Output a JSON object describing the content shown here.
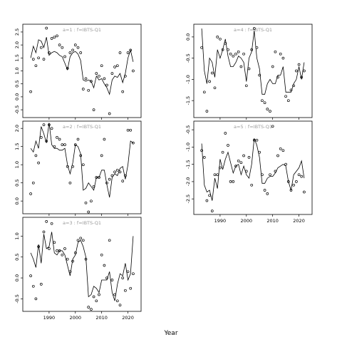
{
  "chart_data": {
    "type": "scatter",
    "xlabel": "Year",
    "x_ticks": [
      1990,
      2000,
      2010,
      2020
    ],
    "x_range": [
      1980,
      2025
    ],
    "panels": [
      {
        "id": "p1",
        "title": "a=1 : f=IBTS-Q1",
        "position": "left-1",
        "ylim": [
          -0.8,
          2.8
        ],
        "yticks": [
          "-0.5",
          "0.0",
          "0.5",
          "1.0",
          "1.5",
          "2.0",
          "2.5"
        ],
        "show_x_ticklabels": false,
        "obs_x": [
          1983,
          1984,
          1985,
          1986,
          1987,
          1988,
          1989,
          1990,
          1991,
          1992,
          1993,
          1994,
          1995,
          1996,
          1997,
          1998,
          1999,
          2000,
          2001,
          2002,
          2003,
          2004,
          2005,
          2006,
          2007,
          2008,
          2009,
          2010,
          2011,
          2012,
          2013,
          2014,
          2015,
          2016,
          2017,
          2018,
          2019,
          2020,
          2021,
          2022
        ],
        "obs_y": [
          0.2,
          1.45,
          1.2,
          1.5,
          1.9,
          1.45,
          2.65,
          1.7,
          2.25,
          2.3,
          2.35,
          2.0,
          1.9,
          1.55,
          1.1,
          1.7,
          1.8,
          2.0,
          1.9,
          1.7,
          0.3,
          0.7,
          0.25,
          0.6,
          -0.5,
          0.9,
          0.8,
          1.2,
          0.7,
          0.45,
          -0.65,
          0.9,
          1.15,
          1.2,
          1.7,
          0.2,
          0.8,
          1.7,
          1.8,
          1.0
        ],
        "fit_x": [
          1983,
          1984,
          1985,
          1986,
          1987,
          1988,
          1989,
          1990,
          1991,
          1992,
          1993,
          1994,
          1995,
          1996,
          1997,
          1998,
          1999,
          2000,
          2001,
          2002,
          2003,
          2004,
          2005,
          2006,
          2007,
          2008,
          2009,
          2010,
          2011,
          2012,
          2013,
          2014,
          2015,
          2016,
          2017,
          2018,
          2019,
          2020,
          2021,
          2022
        ],
        "fit_y": [
          1.5,
          1.95,
          1.7,
          2.2,
          2.15,
          1.9,
          2.3,
          1.6,
          1.7,
          1.75,
          1.7,
          1.6,
          1.55,
          1.3,
          1.05,
          1.55,
          1.7,
          1.75,
          1.65,
          1.4,
          0.65,
          0.6,
          0.65,
          0.6,
          0.35,
          0.8,
          0.65,
          0.7,
          0.5,
          0.35,
          0.1,
          0.65,
          0.8,
          0.75,
          0.9,
          0.55,
          0.9,
          1.5,
          1.8,
          1.35
        ]
      },
      {
        "id": "p2",
        "title": "a=2 : f=IBTS-Q1",
        "position": "left-2",
        "ylim": [
          -0.35,
          2.2
        ],
        "yticks": [
          "0.0",
          "0.5",
          "1.0",
          "1.5",
          "2.0"
        ],
        "show_x_ticklabels": false,
        "obs_x": [
          1983,
          1984,
          1985,
          1986,
          1987,
          1988,
          1989,
          1990,
          1991,
          1992,
          1993,
          1994,
          1995,
          1996,
          1997,
          1998,
          1999,
          2000,
          2001,
          2002,
          2003,
          2004,
          2005,
          2006,
          2007,
          2008,
          2009,
          2010,
          2011,
          2012,
          2013,
          2014,
          2015,
          2016,
          2017,
          2018,
          2019,
          2020,
          2021,
          2022
        ],
        "obs_y": [
          0.2,
          0.5,
          1.25,
          1.05,
          1.75,
          2.1,
          1.65,
          2.1,
          2.0,
          1.5,
          1.75,
          1.7,
          1.55,
          1.55,
          0.95,
          0.5,
          0.95,
          1.55,
          1.7,
          1.25,
          1.0,
          -0.05,
          -0.3,
          0.0,
          0.4,
          0.65,
          0.65,
          1.25,
          1.7,
          0.5,
          0.6,
          0.7,
          0.8,
          0.85,
          0.8,
          0.55,
          0.7,
          1.95,
          1.95,
          1.6
        ],
        "fit_y": [
          1.45,
          1.35,
          1.65,
          1.45,
          2.05,
          1.85,
          1.6,
          2.15,
          1.55,
          1.45,
          1.45,
          1.4,
          1.4,
          1.45,
          1.0,
          0.75,
          1.05,
          1.55,
          1.5,
          1.3,
          0.3,
          0.35,
          0.5,
          0.4,
          0.3,
          0.65,
          0.65,
          0.85,
          0.85,
          0.45,
          0.1,
          0.65,
          0.75,
          0.7,
          0.9,
          0.95,
          0.6,
          1.0,
          1.65,
          1.6
        ]
      },
      {
        "id": "p3",
        "title": "a=3 : f=IBTS-Q1",
        "position": "left-3",
        "ylim": [
          -0.8,
          1.45
        ],
        "yticks": [
          "-0.5",
          "0.0",
          "0.5",
          "1.0"
        ],
        "show_x_ticklabels": true,
        "obs_x": [
          1983,
          1984,
          1985,
          1986,
          1987,
          1988,
          1989,
          1990,
          1991,
          1992,
          1993,
          1994,
          1995,
          1996,
          1997,
          1998,
          1999,
          2000,
          2001,
          2002,
          2003,
          2004,
          2005,
          2006,
          2007,
          2008,
          2009,
          2010,
          2011,
          2012,
          2013,
          2014,
          2015,
          2016,
          2017,
          2018,
          2019,
          2020,
          2021,
          2022
        ],
        "obs_y": [
          0.05,
          -0.2,
          -0.5,
          0.75,
          -0.15,
          1.1,
          1.35,
          0.7,
          1.3,
          0.85,
          0.65,
          0.65,
          0.55,
          0.7,
          0.45,
          0.15,
          0.4,
          0.6,
          0.9,
          0.95,
          0.9,
          0.45,
          -0.7,
          -0.75,
          -0.45,
          -0.55,
          -0.4,
          0.55,
          0.3,
          0.0,
          0.9,
          -0.05,
          -0.4,
          -0.55,
          -0.65,
          0.0,
          -0.3,
          0.15,
          -0.25,
          0.1
        ],
        "fit_y": [
          0.6,
          0.45,
          0.25,
          0.8,
          0.35,
          1.05,
          0.7,
          0.75,
          1.1,
          0.6,
          0.55,
          0.65,
          0.65,
          0.55,
          0.3,
          0.05,
          0.45,
          0.55,
          0.85,
          0.9,
          0.75,
          0.5,
          -0.45,
          -0.4,
          -0.2,
          -0.25,
          -0.35,
          -0.05,
          -0.05,
          -0.05,
          0.15,
          -0.35,
          -0.55,
          -0.15,
          0.1,
          0.05,
          0.35,
          -0.05,
          0.1,
          1.0
        ]
      },
      {
        "id": "p4",
        "title": "a=4 : f=IBTS-Q1",
        "position": "right-1",
        "ylim": [
          -1.9,
          0.3
        ],
        "yticks": [
          "-1.5",
          "-1.0",
          "-0.5",
          "0.0"
        ],
        "show_x_ticklabels": false,
        "obs_x": [
          1983,
          1984,
          1985,
          1986,
          1987,
          1988,
          1989,
          1990,
          1991,
          1992,
          1993,
          1994,
          1995,
          1996,
          1997,
          1998,
          1999,
          2000,
          2001,
          2002,
          2003,
          2004,
          2005,
          2006,
          2007,
          2008,
          2009,
          2010,
          2011,
          2012,
          2013,
          2014,
          2015,
          2016,
          2017,
          2018,
          2019,
          2020,
          2021,
          2022
        ],
        "obs_y": [
          -0.25,
          -1.3,
          -1.75,
          -1.05,
          -0.85,
          -1.2,
          0.0,
          -0.05,
          -0.3,
          -0.15,
          -0.3,
          -0.4,
          -0.45,
          -0.4,
          -0.35,
          -0.7,
          -0.4,
          -1.15,
          -0.75,
          -0.3,
          0.2,
          -0.25,
          -0.9,
          -1.5,
          -1.55,
          -1.7,
          -1.75,
          -0.7,
          -0.35,
          -0.95,
          -0.4,
          -0.5,
          -1.4,
          -1.5,
          -1.25,
          -1.15,
          -0.8,
          -0.65,
          -0.95,
          -0.8
        ],
        "fit_y": [
          0.2,
          -0.8,
          -1.1,
          -0.5,
          -0.6,
          -0.95,
          -0.3,
          -0.5,
          -0.3,
          -0.05,
          -0.45,
          -0.7,
          -0.7,
          -0.6,
          -0.45,
          -0.5,
          -0.6,
          -1.05,
          -0.5,
          -0.35,
          0.15,
          -0.5,
          -0.75,
          -1.35,
          -1.35,
          -1.1,
          -1.0,
          -1.1,
          -1.1,
          -0.9,
          -0.9,
          -0.7,
          -1.3,
          -1.3,
          -1.3,
          -1.1,
          -1.0,
          -0.7,
          -1.0,
          -0.6
        ]
      },
      {
        "id": "p5",
        "title": "a=5 : f=IBTS-Q1",
        "position": "right-2",
        "ylim": [
          -2.95,
          -0.25
        ],
        "yticks": [
          "-2.5",
          "-2.0",
          "-1.5",
          "-1.0",
          "-0.5"
        ],
        "show_x_ticklabels": true,
        "obs_x": [
          1983,
          1984,
          1985,
          1986,
          1987,
          1988,
          1989,
          1990,
          1991,
          1992,
          1993,
          1994,
          1995,
          1996,
          1997,
          1998,
          1999,
          2000,
          2001,
          2002,
          2003,
          2004,
          2005,
          2006,
          2007,
          2008,
          2009,
          2010,
          2011,
          2012,
          2013,
          2014,
          2015,
          2016,
          2017,
          2018,
          2019,
          2020,
          2021,
          2022
        ],
        "obs_y": [
          -1.1,
          -1.3,
          -2.55,
          -2.4,
          -2.85,
          -1.8,
          -1.8,
          -1.6,
          -1.15,
          -0.6,
          -0.95,
          -2.0,
          -2.0,
          -1.55,
          -1.4,
          -1.45,
          -1.25,
          -1.7,
          -1.3,
          -2.1,
          -0.8,
          -0.8,
          -1.15,
          -1.8,
          -2.25,
          -2.35,
          -1.8,
          -0.4,
          -1.7,
          -1.25,
          -1.05,
          -1.1,
          -1.5,
          -2.0,
          -2.25,
          -2.1,
          -2.0,
          -1.8,
          -1.85,
          -2.3
        ],
        "fit_y": [
          -0.9,
          -2.1,
          -2.3,
          -2.25,
          -2.55,
          -1.9,
          -2.2,
          -1.35,
          -1.65,
          -1.35,
          -1.15,
          -1.45,
          -1.75,
          -1.55,
          -1.5,
          -1.8,
          -1.55,
          -1.8,
          -1.9,
          -1.5,
          -0.75,
          -0.95,
          -1.3,
          -2.05,
          -2.05,
          -1.9,
          -1.85,
          -1.85,
          -1.75,
          -1.6,
          -1.55,
          -1.5,
          -1.55,
          -2.0,
          -2.25,
          -1.8,
          -1.7,
          -1.6,
          -1.4,
          -1.9
        ]
      }
    ]
  }
}
